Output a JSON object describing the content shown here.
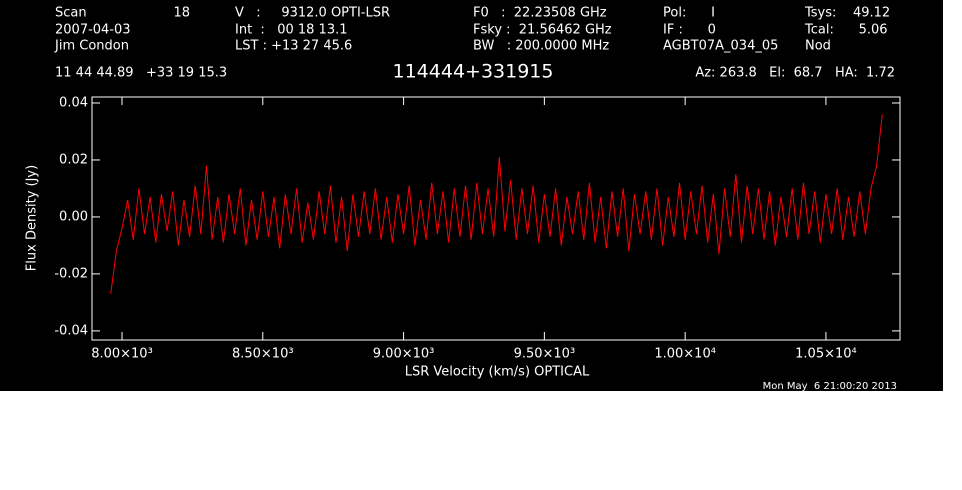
{
  "header": {
    "scan_label": "Scan",
    "scan": "18",
    "date": "2007-04-03",
    "observer": "Jim Condon",
    "velocity": "V   :     9312.0 OPTI-LSR",
    "int": "Int  :   00 18 13.1",
    "lst": "LST : +13 27 45.6",
    "f0": "F0   :  22.23508 GHz",
    "fsky": "Fsky :  21.56462 GHz",
    "bw": "BW   : 200.0000 MHz",
    "pol": "Pol:      I",
    "if": "IF :      0",
    "project": "AGBT07A_034_05",
    "tsys": "Tsys:    49.12",
    "tcal": "Tcal:      5.06",
    "proc": "Nod",
    "coords": "11 44 44.89   +33 19 15.3",
    "source": "114444+331915",
    "azel": "Az: 263.8   El:  68.7   HA:  1.72",
    "timestamp": "Mon May  6 21:00:20 2013"
  },
  "chart_data": {
    "type": "line",
    "x_label": "LSR Velocity (km/s) OPTICAL",
    "y_label": "Flux Density (Jy)",
    "xlim": [
      7893.5,
      10763
    ],
    "ylim": [
      -0.0432,
      0.0421
    ],
    "xticks": [
      {
        "value": 8000,
        "label": "8.00×10³"
      },
      {
        "value": 8500,
        "label": "8.50×10³"
      },
      {
        "value": 9000,
        "label": "9.00×10³"
      },
      {
        "value": 9500,
        "label": "9.50×10³"
      },
      {
        "value": 10000,
        "label": "1.00×10⁴"
      },
      {
        "value": 10500,
        "label": "1.05×10⁴"
      }
    ],
    "yticks": [
      -0.04,
      -0.02,
      {
        "value": 0,
        "label": "0.00"
      },
      0.02,
      0.04
    ],
    "grid": false,
    "x": [
      7960,
      7980,
      8000,
      8020,
      8040,
      8060,
      8080,
      8100,
      8120,
      8140,
      8160,
      8180,
      8200,
      8220,
      8240,
      8260,
      8280,
      8300,
      8320,
      8340,
      8360,
      8380,
      8400,
      8420,
      8440,
      8460,
      8480,
      8500,
      8520,
      8540,
      8560,
      8580,
      8600,
      8620,
      8640,
      8660,
      8680,
      8700,
      8720,
      8740,
      8760,
      8780,
      8800,
      8820,
      8840,
      8860,
      8880,
      8900,
      8920,
      8940,
      8960,
      8980,
      9000,
      9020,
      9040,
      9060,
      9080,
      9100,
      9120,
      9140,
      9160,
      9180,
      9200,
      9220,
      9240,
      9260,
      9280,
      9300,
      9320,
      9340,
      9360,
      9380,
      9400,
      9420,
      9440,
      9460,
      9480,
      9500,
      9520,
      9540,
      9560,
      9580,
      9600,
      9620,
      9640,
      9660,
      9680,
      9700,
      9720,
      9740,
      9760,
      9780,
      9800,
      9820,
      9840,
      9860,
      9880,
      9900,
      9920,
      9940,
      9960,
      9980,
      10000,
      10020,
      10040,
      10060,
      10080,
      10100,
      10120,
      10140,
      10160,
      10180,
      10200,
      10220,
      10240,
      10260,
      10280,
      10300,
      10320,
      10340,
      10360,
      10380,
      10400,
      10420,
      10440,
      10460,
      10480,
      10500,
      10520,
      10540,
      10560,
      10580,
      10600,
      10620,
      10640,
      10660,
      10680,
      10700
    ],
    "series": [
      {
        "name": "Flux",
        "color": "#ff0000",
        "values": [
          -0.027,
          -0.012,
          -0.004,
          0.006,
          -0.008,
          0.01,
          -0.006,
          0.007,
          -0.009,
          0.008,
          -0.005,
          0.009,
          -0.01,
          0.006,
          -0.007,
          0.011,
          -0.006,
          0.018,
          -0.008,
          0.007,
          -0.009,
          0.008,
          -0.006,
          0.01,
          -0.01,
          0.006,
          -0.008,
          0.009,
          -0.007,
          0.007,
          -0.011,
          0.008,
          -0.006,
          0.01,
          -0.009,
          0.005,
          -0.008,
          0.009,
          -0.006,
          0.011,
          -0.009,
          0.007,
          -0.012,
          0.008,
          -0.007,
          0.009,
          -0.006,
          0.01,
          -0.008,
          0.007,
          -0.009,
          0.008,
          -0.006,
          0.011,
          -0.01,
          0.006,
          -0.008,
          0.012,
          -0.006,
          0.009,
          -0.009,
          0.01,
          -0.007,
          0.011,
          -0.008,
          0.012,
          -0.006,
          0.01,
          -0.007,
          0.021,
          -0.005,
          0.013,
          -0.008,
          0.01,
          -0.006,
          0.011,
          -0.009,
          0.008,
          -0.007,
          0.01,
          -0.01,
          0.007,
          -0.006,
          0.009,
          -0.008,
          0.012,
          -0.009,
          0.007,
          -0.011,
          0.009,
          -0.007,
          0.01,
          -0.012,
          0.008,
          -0.006,
          0.009,
          -0.008,
          0.01,
          -0.01,
          0.007,
          -0.007,
          0.012,
          -0.008,
          0.009,
          -0.006,
          0.011,
          -0.009,
          0.008,
          -0.013,
          0.01,
          -0.007,
          0.015,
          -0.009,
          0.011,
          -0.006,
          0.01,
          -0.008,
          0.009,
          -0.01,
          0.007,
          -0.007,
          0.01,
          -0.008,
          0.012,
          -0.006,
          0.009,
          -0.009,
          0.008,
          -0.006,
          0.01,
          -0.008,
          0.007,
          -0.007,
          0.009,
          -0.006,
          0.01,
          0.018,
          0.036
        ]
      }
    ]
  }
}
